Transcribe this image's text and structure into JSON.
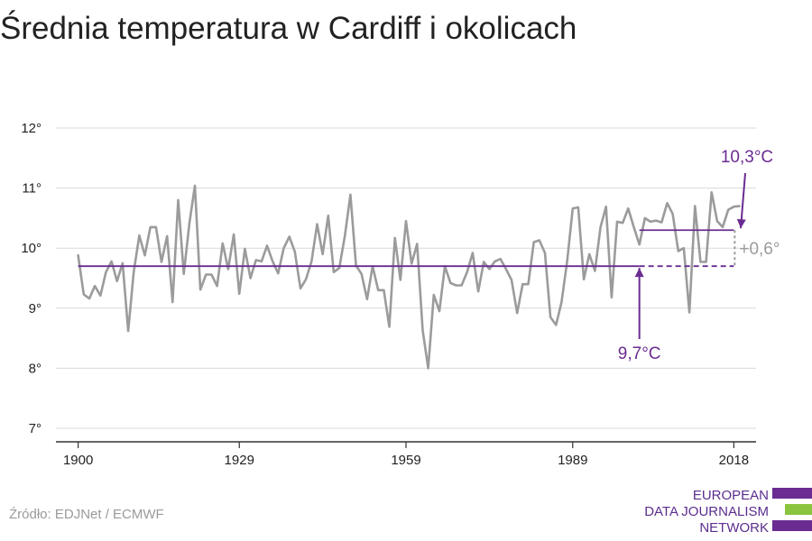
{
  "title": "Średnia temperatura w Cardiff i okolicach",
  "source": "Źródło: EDJNet / ECMWF",
  "logo": {
    "lines": [
      "EUROPEAN",
      "DATA JOURNALISM",
      "NETWORK"
    ],
    "colors": {
      "purple": "#6a2c91",
      "green": "#8bc53f"
    }
  },
  "colors": {
    "series": "#9b9b9b",
    "reference": "#6a2c91",
    "grid": "#d9d9d9",
    "axis": "#333333",
    "annotation_gray": "#9b9b9b"
  },
  "chart_data": {
    "type": "line",
    "title": "Średnia temperatura w Cardiff i okolicach",
    "xlabel": "",
    "ylabel": "",
    "xlim": [
      1896,
      2022
    ],
    "ylim": [
      7,
      12
    ],
    "x_ticks": [
      1900,
      1929,
      1959,
      1989,
      2018
    ],
    "x_tick_labels": [
      "1900",
      "1929",
      "1959",
      "1989",
      "2018"
    ],
    "y_ticks": [
      7,
      8,
      9,
      10,
      11,
      12
    ],
    "y_tick_labels": [
      "7°",
      "8°",
      "9°",
      "10°",
      "11°",
      "12°"
    ],
    "grid": true,
    "legend": "none",
    "series": [
      {
        "x": [
          1900,
          1901,
          1902,
          1903,
          1904,
          1905,
          1906,
          1907,
          1908,
          1909,
          1910,
          1911,
          1912,
          1913,
          1914,
          1915,
          1916,
          1917,
          1918,
          1919,
          1920,
          1921,
          1922,
          1923,
          1924,
          1925,
          1926,
          1927,
          1928,
          1929,
          1930,
          1931,
          1932,
          1933,
          1934,
          1935,
          1936,
          1937,
          1938,
          1939,
          1940,
          1941,
          1942,
          1943,
          1944,
          1945,
          1946,
          1947,
          1948,
          1949,
          1950,
          1951,
          1952,
          1953,
          1954,
          1955,
          1956,
          1957,
          1958,
          1959,
          1960,
          1961,
          1962,
          1963,
          1964,
          1965,
          1966,
          1967,
          1968,
          1969,
          1970,
          1971,
          1972,
          1973,
          1974,
          1975,
          1976,
          1977,
          1978,
          1979,
          1980,
          1981,
          1982,
          1983,
          1984,
          1985,
          1986,
          1987,
          1988,
          1989,
          1990,
          1991,
          1992,
          1993,
          1994,
          1995,
          1996,
          1997,
          1998,
          1999,
          2000,
          2001,
          2002,
          2003,
          2004,
          2005,
          2006,
          2007,
          2008,
          2009,
          2010,
          2011,
          2012,
          2013,
          2014,
          2015,
          2016,
          2017,
          2018,
          2019
        ],
        "values": [
          9.88,
          9.23,
          9.16,
          9.37,
          9.21,
          9.6,
          9.78,
          9.45,
          9.75,
          8.62,
          9.6,
          10.21,
          9.88,
          10.35,
          10.35,
          9.77,
          10.2,
          9.1,
          10.8,
          9.57,
          10.4,
          11.04,
          9.31,
          9.56,
          9.56,
          9.37,
          10.08,
          9.65,
          10.23,
          9.24,
          9.99,
          9.5,
          9.8,
          9.78,
          10.04,
          9.78,
          9.58,
          10.0,
          10.19,
          9.94,
          9.33,
          9.48,
          9.78,
          10.4,
          9.9,
          10.54,
          9.6,
          9.67,
          10.21,
          10.89,
          9.71,
          9.57,
          9.15,
          9.7,
          9.3,
          9.3,
          8.69,
          10.17,
          9.47,
          10.45,
          9.74,
          10.07,
          8.63,
          8.0,
          9.22,
          8.95,
          9.7,
          9.42,
          9.38,
          9.38,
          9.6,
          9.92,
          9.28,
          9.77,
          9.65,
          9.78,
          9.82,
          9.65,
          9.47,
          8.92,
          9.4,
          9.4,
          10.1,
          10.13,
          9.92,
          8.85,
          8.72,
          9.1,
          9.78,
          10.66,
          10.68,
          9.48,
          9.9,
          9.62,
          10.35,
          10.69,
          9.18,
          10.44,
          10.42,
          10.66,
          10.35,
          10.06,
          10.5,
          10.44,
          10.46,
          10.43,
          10.75,
          10.57,
          9.95,
          10.0,
          8.93,
          10.7,
          9.77,
          9.77,
          10.93,
          10.45,
          10.35,
          10.64,
          10.69,
          10.7
        ]
      }
    ],
    "reference_lines": [
      {
        "label": "9,7°C",
        "value": 9.7,
        "from": 1900,
        "solid_to": 2001,
        "to": 2018
      },
      {
        "label": "10,3°C",
        "value": 10.3,
        "from": 2001,
        "to": 2018
      }
    ],
    "difference_label": "+0,6°"
  }
}
